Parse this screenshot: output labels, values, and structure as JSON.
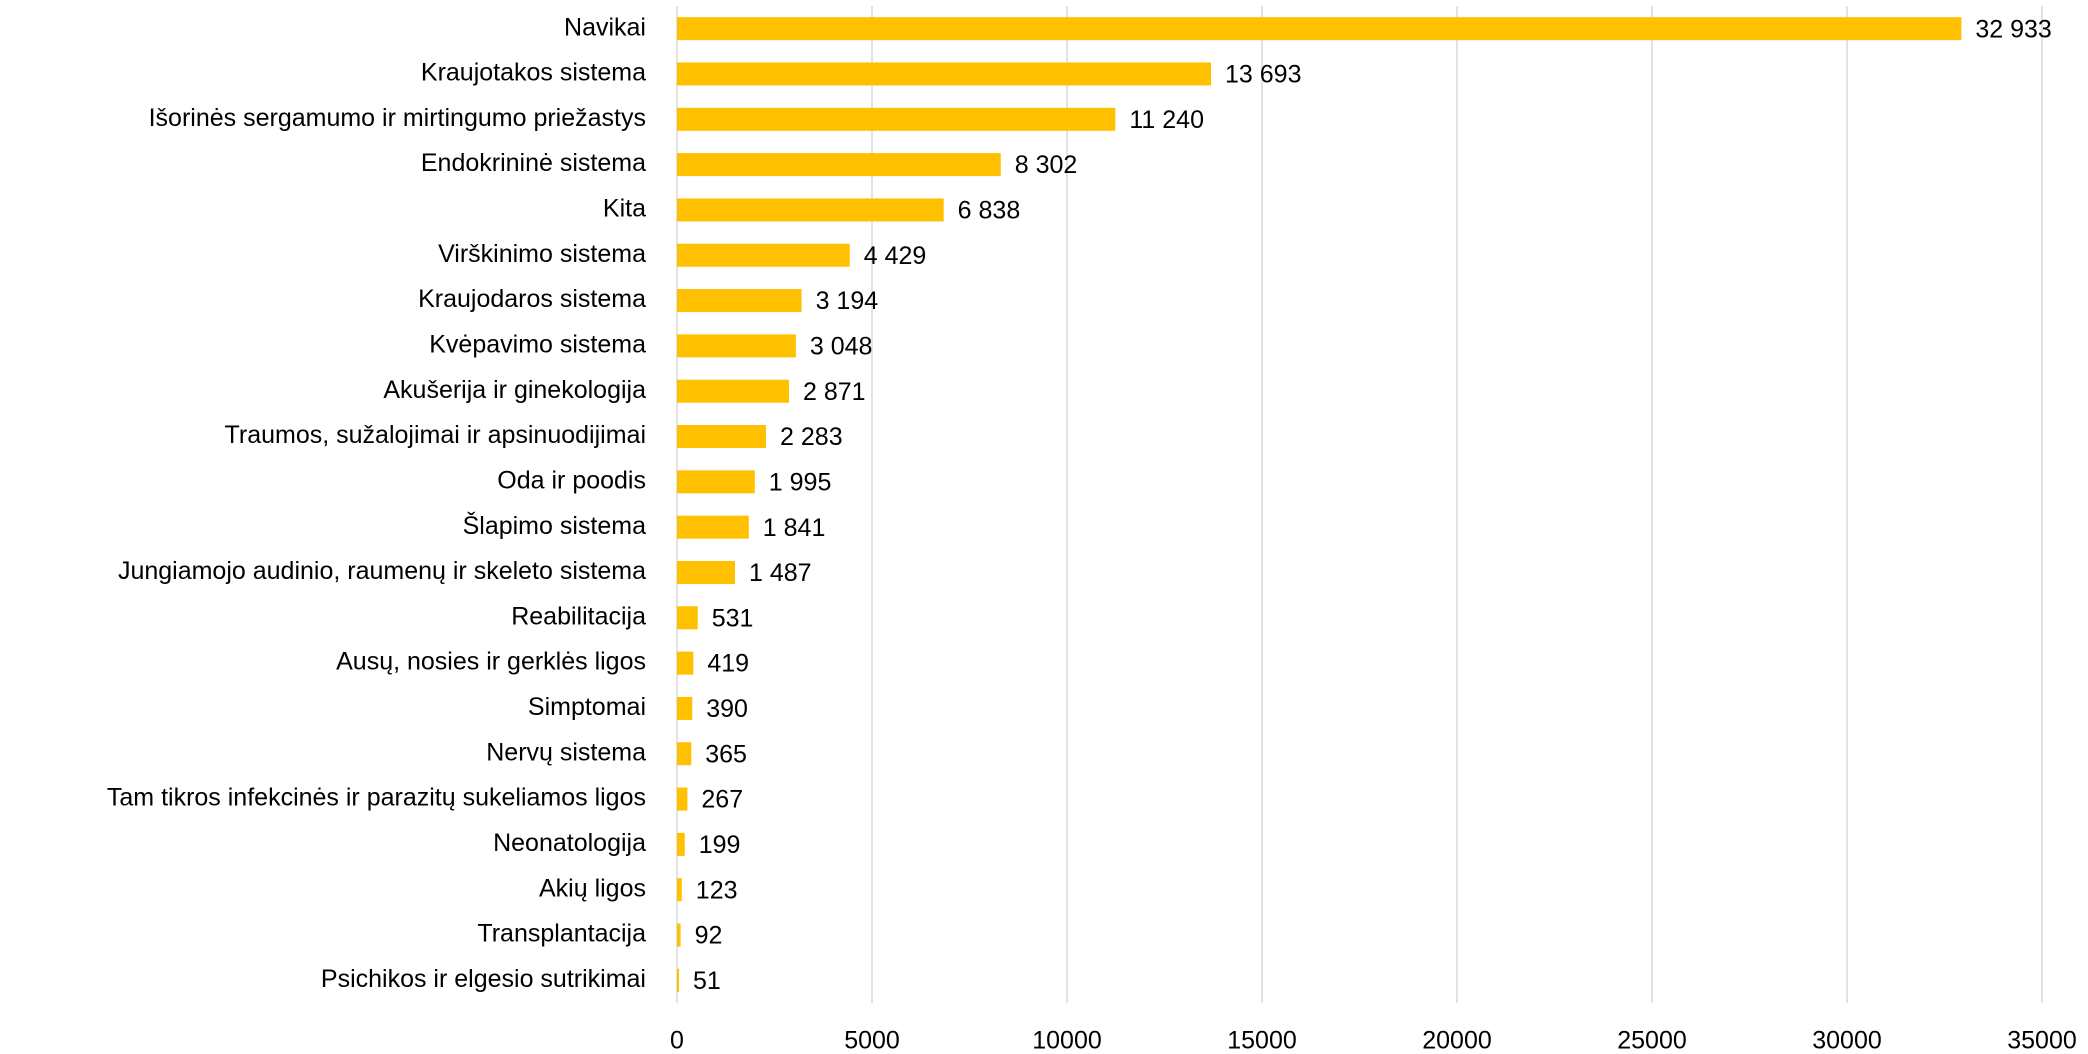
{
  "chart_data": {
    "type": "bar",
    "orientation": "horizontal",
    "categories": [
      "Navikai",
      "Kraujotakos sistema",
      "Išorinės sergamumo ir mirtingumo priežastys",
      "Endokrininė sistema",
      "Kita",
      "Virškinimo sistema",
      "Kraujodaros sistema",
      "Kvėpavimo sistema",
      "Akušerija ir ginekologija",
      "Traumos, sužalojimai ir apsinuodijimai",
      "Oda ir poodis",
      "Šlapimo sistema",
      "Jungiamojo audinio, raumenų ir skeleto sistema",
      "Reabilitacija",
      "Ausų, nosies ir gerklės ligos",
      "Simptomai",
      "Nervų sistema",
      "Tam tikros infekcinės ir parazitų sukeliamos ligos",
      "Neonatologija",
      "Akių ligos",
      "Transplantacija",
      "Psichikos ir elgesio sutrikimai"
    ],
    "values": [
      32933,
      13693,
      11240,
      8302,
      6838,
      4429,
      3194,
      3048,
      2871,
      2283,
      1995,
      1841,
      1487,
      531,
      419,
      390,
      365,
      267,
      199,
      123,
      92,
      51
    ],
    "value_labels": [
      "32 933",
      "13 693",
      "11 240",
      "8 302",
      "6 838",
      "4 429",
      "3 194",
      "3 048",
      "2 871",
      "2 283",
      "1 995",
      "1 841",
      "1 487",
      "531",
      "419",
      "390",
      "365",
      "267",
      "199",
      "123",
      "92",
      "51"
    ],
    "color": "#FFC000",
    "xlim": [
      0,
      35000
    ],
    "xticks": [
      0,
      5000,
      10000,
      15000,
      20000,
      25000,
      30000,
      35000
    ],
    "grid": true
  }
}
